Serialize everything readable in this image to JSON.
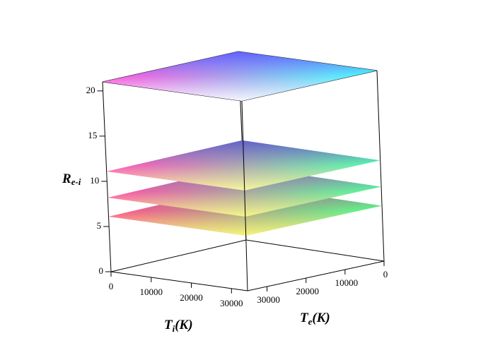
{
  "chart_data": {
    "type": "surface3d",
    "zlabel": [
      "R",
      "e-i"
    ],
    "xlabel": [
      "T",
      "i",
      "(K)"
    ],
    "ylabel": [
      "T",
      "e",
      "(K)"
    ],
    "xlim": [
      0,
      34000
    ],
    "ylim": [
      0,
      35000
    ],
    "zlim": [
      0,
      21
    ],
    "xticks": [
      0,
      10000,
      20000,
      30000
    ],
    "yticks": [
      0,
      10000,
      20000,
      30000
    ],
    "zticks": [
      0,
      5,
      10,
      15,
      20
    ],
    "surfaces": [
      {
        "z": 6.1,
        "colors": [
          "#ff4f8f",
          "#55ff88",
          "#aa5599",
          "#ffff77"
        ]
      },
      {
        "z": 8.2,
        "colors": [
          "#ff4faa",
          "#55ff99",
          "#8855bb",
          "#ffff88"
        ]
      },
      {
        "z": 11.1,
        "colors": [
          "#ff55bb",
          "#55ffaa",
          "#5555cc",
          "#ffff99"
        ]
      },
      {
        "z": 21,
        "colors": [
          "#ff55dd",
          "#44ffff",
          "#5555ff",
          "#ffffff"
        ]
      }
    ]
  }
}
